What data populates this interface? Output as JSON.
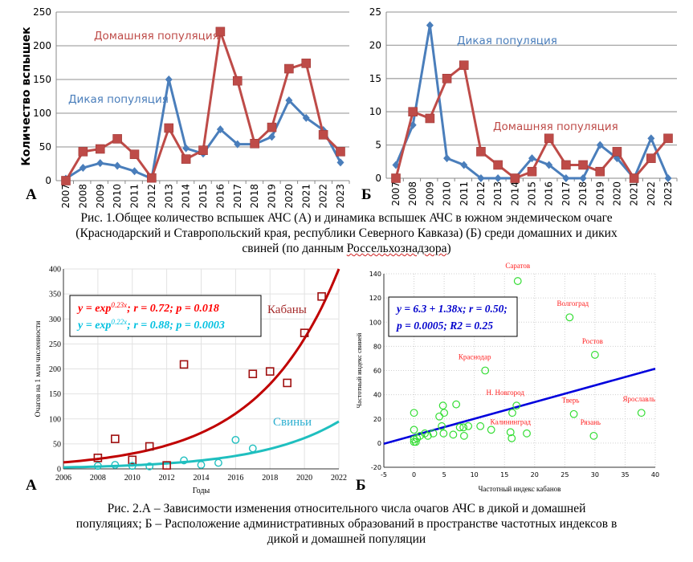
{
  "figure1": {
    "caption_parts": [
      "Рис. 1.Общее количество вспышек АЧС (А) и динамика вспышек АЧС в южном эндемическом очаге",
      "(Краснодарский и Ставропольский края, республики Северного Кавказа) (Б) среди домашних и диких",
      "свиней (по данным ",
      "Россельхознадзора",
      ")"
    ]
  },
  "figure2": {
    "caption_lines": [
      "Рис. 2.А – Зависимости изменения относительного числа очагов АЧС в дикой и домашней",
      "популяциях; Б – Расположение административных образований в пространстве частотных индексов в",
      "дикой и домашней популяции"
    ]
  },
  "colors": {
    "wild": "#4a7ebb",
    "domestic": "#be4b48",
    "grid": "#a6a6a6",
    "boar_fit": "#c00000",
    "pig_fit": "#1fbfbf",
    "eq_red": "#ff0000",
    "eq_cyan": "#00c0e0",
    "scatter_point": "#33dd33",
    "regression": "#0000dd",
    "eq_blue": "#0000cc",
    "region_label": "#ff2020"
  },
  "chart_data": [
    {
      "id": "fig1A",
      "type": "line",
      "panel_label": "А",
      "title": "",
      "xlabel": "",
      "ylabel": "Количество вспышек",
      "ylim": [
        0,
        250
      ],
      "yticks": [
        0,
        50,
        100,
        150,
        200,
        250
      ],
      "grid": true,
      "x": [
        "2007",
        "2008",
        "2009",
        "2010",
        "2011",
        "2012",
        "2013",
        "2014",
        "2015",
        "2016",
        "2017",
        "2018",
        "2019",
        "2020",
        "2021",
        "2022",
        "2023"
      ],
      "series": [
        {
          "name": "Дикая популяция",
          "marker": "diamond",
          "values": [
            3,
            19,
            26,
            22,
            14,
            3,
            150,
            48,
            40,
            76,
            54,
            54,
            65,
            119,
            93,
            75,
            27
          ]
        },
        {
          "name": "Домашняя популяция",
          "marker": "square",
          "values": [
            0,
            43,
            47,
            62,
            39,
            4,
            78,
            32,
            45,
            221,
            148,
            55,
            79,
            166,
            174,
            68,
            43
          ]
        }
      ],
      "annotations": [
        {
          "text": "Домашняя популяция",
          "series": "Домашняя популяция"
        },
        {
          "text": "Дикая популяция",
          "series": "Дикая популяция"
        }
      ]
    },
    {
      "id": "fig1B",
      "type": "line",
      "panel_label": "Б",
      "title": "",
      "xlabel": "",
      "ylabel": "",
      "ylim": [
        0,
        25
      ],
      "yticks": [
        0,
        5,
        10,
        15,
        20,
        25
      ],
      "grid": true,
      "x": [
        "2007",
        "2008",
        "2009",
        "2010",
        "2011",
        "2012",
        "2013",
        "2014",
        "2015",
        "2016",
        "2017",
        "2018",
        "2019",
        "2020",
        "2021",
        "2022",
        "2023"
      ],
      "series": [
        {
          "name": "Дикая популяция",
          "marker": "diamond",
          "values": [
            2,
            8,
            23,
            3,
            2,
            0,
            0,
            0,
            3,
            2,
            0,
            0,
            5,
            3,
            0,
            6,
            0
          ]
        },
        {
          "name": "Домашняя популяция",
          "marker": "square",
          "values": [
            0,
            10,
            9,
            15,
            17,
            4,
            2,
            0,
            1,
            6,
            2,
            2,
            1,
            4,
            0,
            3,
            6
          ]
        }
      ],
      "annotations": [
        {
          "text": "Дикая популяция",
          "series": "Дикая популяция"
        },
        {
          "text": "Домашняя популяция",
          "series": "Домашняя популяция"
        }
      ]
    },
    {
      "id": "fig2A",
      "type": "scatter",
      "panel_label": "А",
      "title": "",
      "xlabel": "Годы",
      "ylabel": "Очагов на 1 млн численности",
      "xlim": [
        2006,
        2022
      ],
      "ylim": [
        0,
        400
      ],
      "xticks": [
        2006,
        2008,
        2010,
        2012,
        2014,
        2016,
        2018,
        2020,
        2022
      ],
      "yticks": [
        0,
        50,
        100,
        150,
        200,
        250,
        300,
        350,
        400
      ],
      "grid": true,
      "series": [
        {
          "name": "Кабаны",
          "marker": "square",
          "points": [
            [
              2008,
              22
            ],
            [
              2009,
              60
            ],
            [
              2010,
              18
            ],
            [
              2011,
              45
            ],
            [
              2012,
              7
            ],
            [
              2013,
              209
            ],
            [
              2017,
              190
            ],
            [
              2018,
              195
            ],
            [
              2019,
              172
            ],
            [
              2020,
              272
            ],
            [
              2021,
              345
            ]
          ],
          "fit": {
            "type": "exponential",
            "at_2006": 13,
            "at_2022": 400
          }
        },
        {
          "name": "Свиньи",
          "marker": "circle",
          "points": [
            [
              2008,
              6
            ],
            [
              2009,
              8
            ],
            [
              2010,
              6
            ],
            [
              2011,
              5
            ],
            [
              2013,
              17
            ],
            [
              2014,
              8
            ],
            [
              2015,
              12
            ],
            [
              2016,
              58
            ],
            [
              2017,
              41
            ]
          ],
          "fit": {
            "type": "exponential",
            "at_2006": 3,
            "at_2022": 95
          }
        }
      ],
      "legend_box": [
        {
          "eq": "y = exp",
          "exp": "0.23x",
          "rest": "; r = 0.72; p = 0.018",
          "series": "Кабаны"
        },
        {
          "eq": "y = exp",
          "exp": "0.22x",
          "rest": "; r = 0.88; p = 0.0003",
          "series": "Свиньи"
        }
      ],
      "annotations": [
        {
          "text": "Кабаны"
        },
        {
          "text": "Свиньи"
        }
      ]
    },
    {
      "id": "fig2B",
      "type": "scatter",
      "panel_label": "Б",
      "title": "",
      "xlabel": "Частотный индекс кабанов",
      "ylabel": "Частотный индекс свиней",
      "xlim": [
        -5,
        40
      ],
      "ylim": [
        -20,
        140
      ],
      "xticks": [
        -5,
        0,
        5,
        10,
        15,
        20,
        25,
        30,
        35,
        40
      ],
      "yticks": [
        -20,
        0,
        20,
        40,
        60,
        80,
        100,
        120,
        140
      ],
      "grid": true,
      "regression": {
        "intercept": 6.3,
        "slope": 1.38
      },
      "legend_box": [
        "y = 6.3 + 1.38x; r = 0.50;",
        "p = 0.0005; R2 = 0.25"
      ],
      "points": [
        {
          "x": 17.2,
          "y": 134,
          "label": "Саратов"
        },
        {
          "x": 25.8,
          "y": 104,
          "label": "Волгоград"
        },
        {
          "x": 30,
          "y": 73,
          "label": "Ростов"
        },
        {
          "x": 11.8,
          "y": 60,
          "label": "Краснодар"
        },
        {
          "x": 17,
          "y": 31,
          "label": "Н. Новгород"
        },
        {
          "x": 26.5,
          "y": 24,
          "label": "Тверь"
        },
        {
          "x": 37.7,
          "y": 25,
          "label": "Ярославль"
        },
        {
          "x": 16,
          "y": 9,
          "label": "Калининград"
        },
        {
          "x": 29.8,
          "y": 6,
          "label": "Рязань"
        },
        {
          "x": 0,
          "y": 25
        },
        {
          "x": 0,
          "y": 11
        },
        {
          "x": 0,
          "y": 3
        },
        {
          "x": 0,
          "y": 1
        },
        {
          "x": 0.3,
          "y": 1
        },
        {
          "x": 0.5,
          "y": 4
        },
        {
          "x": 1,
          "y": 6
        },
        {
          "x": 1.8,
          "y": 8
        },
        {
          "x": 2.3,
          "y": 6
        },
        {
          "x": 3.2,
          "y": 8
        },
        {
          "x": 4.2,
          "y": 22
        },
        {
          "x": 4.8,
          "y": 31
        },
        {
          "x": 5,
          "y": 25
        },
        {
          "x": 4.6,
          "y": 14
        },
        {
          "x": 4.9,
          "y": 8
        },
        {
          "x": 6.5,
          "y": 7
        },
        {
          "x": 7,
          "y": 32
        },
        {
          "x": 7.6,
          "y": 13
        },
        {
          "x": 8.2,
          "y": 13
        },
        {
          "x": 8.3,
          "y": 6
        },
        {
          "x": 9,
          "y": 14
        },
        {
          "x": 11,
          "y": 14
        },
        {
          "x": 12.8,
          "y": 11
        },
        {
          "x": 16.3,
          "y": 25
        },
        {
          "x": 16.2,
          "y": 4
        },
        {
          "x": 18.7,
          "y": 8
        }
      ]
    }
  ]
}
